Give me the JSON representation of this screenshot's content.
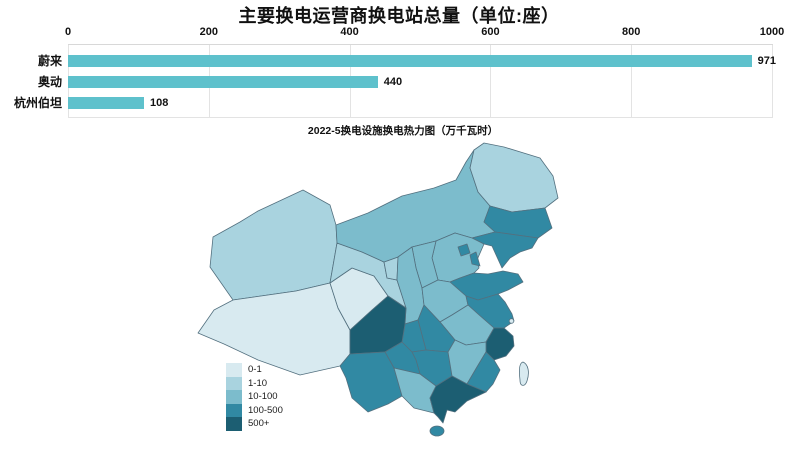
{
  "bar_chart_layout": {
    "note": "horizontal bars, axis on top"
  },
  "chart_data": [
    {
      "type": "bar",
      "orientation": "horizontal",
      "title": "主要换电运营商换电站总量（单位:座）",
      "categories": [
        "蔚来",
        "奥动",
        "杭州伯坦"
      ],
      "values": [
        971,
        440,
        108
      ],
      "xlim": [
        0,
        1000
      ],
      "x_ticks": [
        0,
        200,
        400,
        600,
        800,
        1000
      ],
      "bar_color": "#5ec1cc",
      "grid": "vertical",
      "axis_position": "top",
      "value_labels_shown": true
    },
    {
      "type": "heatmap",
      "subtype": "china-choropleth",
      "title": "2022-5换电设施换电热力图（万千瓦时）",
      "legend_position": "bottom-left",
      "bins": [
        "0-1",
        "1-10",
        "10-100",
        "100-500",
        "500+"
      ],
      "bin_colors": [
        "#d8eaf0",
        "#a9d3df",
        "#7cbccc",
        "#3189a3",
        "#1c5e72"
      ],
      "border_color": "#53707f",
      "regions": [
        {
          "id": "heilongjiang",
          "name": "黑龙江",
          "level": "1-10"
        },
        {
          "id": "jilin",
          "name": "吉林",
          "level": "100-500"
        },
        {
          "id": "liaoning",
          "name": "辽宁",
          "level": "100-500"
        },
        {
          "id": "neimenggu",
          "name": "内蒙古",
          "level": "10-100"
        },
        {
          "id": "beijing",
          "name": "北京",
          "level": "100-500"
        },
        {
          "id": "tianjin",
          "name": "天津",
          "level": "100-500"
        },
        {
          "id": "hebei",
          "name": "河北",
          "level": "10-100"
        },
        {
          "id": "shanxi",
          "name": "山西",
          "level": "10-100"
        },
        {
          "id": "shandong",
          "name": "山东",
          "level": "100-500"
        },
        {
          "id": "henan",
          "name": "河南",
          "level": "10-100"
        },
        {
          "id": "jiangsu",
          "name": "江苏",
          "level": "100-500"
        },
        {
          "id": "anhui",
          "name": "安徽",
          "level": "10-100"
        },
        {
          "id": "zhejiang",
          "name": "浙江",
          "level": "500+"
        },
        {
          "id": "hubei",
          "name": "湖北",
          "level": "100-500"
        },
        {
          "id": "jiangxi",
          "name": "江西",
          "level": "10-100"
        },
        {
          "id": "fujian",
          "name": "福建",
          "level": "100-500"
        },
        {
          "id": "hunan",
          "name": "湖南",
          "level": "100-500"
        },
        {
          "id": "guangdong",
          "name": "广东",
          "level": "500+"
        },
        {
          "id": "guangxi",
          "name": "广西",
          "level": "10-100"
        },
        {
          "id": "hainan",
          "name": "海南",
          "level": "100-500"
        },
        {
          "id": "sichuan",
          "name": "四川",
          "level": "500+"
        },
        {
          "id": "chongqing",
          "name": "重庆",
          "level": "100-500"
        },
        {
          "id": "guizhou",
          "name": "贵州",
          "level": "100-500"
        },
        {
          "id": "yunnan",
          "name": "云南",
          "level": "100-500"
        },
        {
          "id": "shaanxi",
          "name": "陕西",
          "level": "10-100"
        },
        {
          "id": "gansu",
          "name": "甘肃",
          "level": "1-10"
        },
        {
          "id": "qinghai",
          "name": "青海",
          "level": "0-1"
        },
        {
          "id": "ningxia",
          "name": "宁夏",
          "level": "1-10"
        },
        {
          "id": "xinjiang",
          "name": "新疆",
          "level": "1-10"
        },
        {
          "id": "xizang",
          "name": "西藏",
          "level": "0-1"
        },
        {
          "id": "taiwan",
          "name": "台湾",
          "level": "0-1"
        }
      ]
    }
  ]
}
